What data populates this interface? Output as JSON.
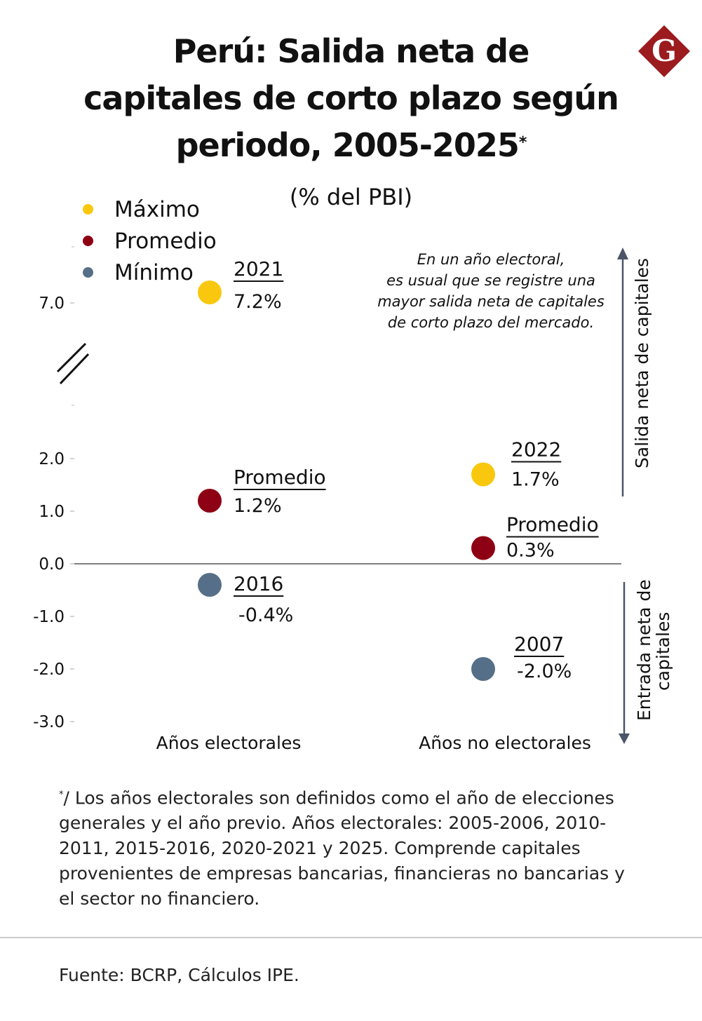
{
  "header": {
    "title_lines": [
      "Perú: Salida neta de",
      "capitales de corto plazo según",
      "periodo, 2005-2025"
    ],
    "title_footnote_mark": "*",
    "subtitle": "(% del PBI)",
    "logo_letter": "G"
  },
  "colors": {
    "maximo": "#F9C80E",
    "promedio": "#8E0013",
    "minimo": "#566F88",
    "logo": "#9B1B1E",
    "arrow": "#4A5568",
    "axis": "#555555"
  },
  "legend": [
    {
      "label": "Máximo",
      "color_key": "maximo"
    },
    {
      "label": "Promedio",
      "color_key": "promedio"
    },
    {
      "label": "Mínimo",
      "color_key": "minimo"
    }
  ],
  "annotation_note": [
    "En un año electoral,",
    "es usual que se registre una",
    "mayor salida neta de capitales",
    "de corto plazo del mercado."
  ],
  "side_labels": {
    "up": "Salida neta de capitales",
    "down": [
      "Entrada neta de",
      "capitales"
    ]
  },
  "chart_data": {
    "type": "scatter",
    "title": "Perú: Salida neta de capitales de corto plazo según periodo, 2005-2025",
    "subtitle": "(% del PBI)",
    "xlabel": "",
    "ylabel": "% del PBI",
    "categories": [
      "Años electorales",
      "Años no electorales"
    ],
    "ylim": [
      -3.0,
      7.0
    ],
    "axis_break": [
      2.0,
      7.0
    ],
    "y_ticks": [
      {
        "value": 7.0,
        "label": "7.0"
      },
      {
        "value": 2.0,
        "label": "2.0"
      },
      {
        "value": 1.0,
        "label": "1.0"
      },
      {
        "value": 0.0,
        "label": "0.0"
      },
      {
        "value": -1.0,
        "label": "-1.0"
      },
      {
        "value": -2.0,
        "label": "-2.0"
      },
      {
        "value": -3.0,
        "label": "-3.0"
      }
    ],
    "legend_position": "top-left",
    "grid": false,
    "series": [
      {
        "name": "Máximo",
        "color_key": "maximo",
        "points": [
          {
            "category": "Años electorales",
            "value": 7.2,
            "label": "2021",
            "value_label": "7.2%"
          },
          {
            "category": "Años no electorales",
            "value": 1.7,
            "label": "2022",
            "value_label": "1.7%"
          }
        ]
      },
      {
        "name": "Promedio",
        "color_key": "promedio",
        "points": [
          {
            "category": "Años electorales",
            "value": 1.2,
            "label": "Promedio",
            "value_label": "1.2%"
          },
          {
            "category": "Años no electorales",
            "value": 0.3,
            "label": "Promedio",
            "value_label": "0.3%"
          }
        ]
      },
      {
        "name": "Mínimo",
        "color_key": "minimo",
        "points": [
          {
            "category": "Años electorales",
            "value": -0.4,
            "label": "2016",
            "value_label": "-0.4%"
          },
          {
            "category": "Años no electorales",
            "value": -2.0,
            "label": "2007",
            "value_label": "-2.0%"
          }
        ]
      }
    ]
  },
  "footnote": {
    "mark": "*",
    "text": "/ Los años electorales son definidos como el año de elecciones generales y el año previo. Años electorales: 2005-2006, 2010-2011, 2015-2016, 2020-2021 y 2025. Comprende capitales provenientes de empresas bancarias, financieras no bancarias y el sector no financiero."
  },
  "source": "Fuente: BCRP, Cálculos IPE."
}
